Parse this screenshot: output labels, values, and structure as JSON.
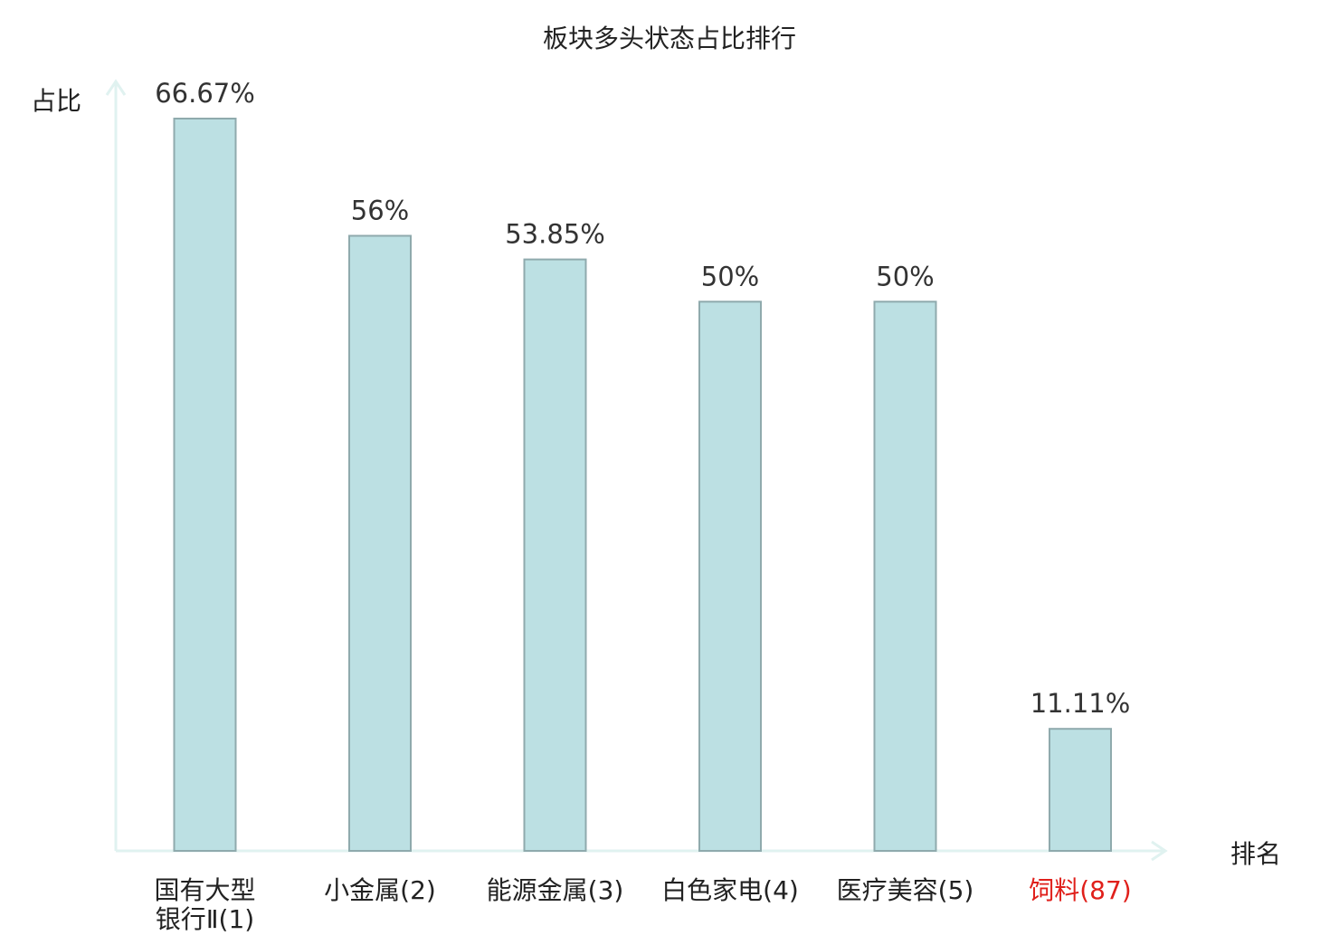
{
  "chart_data": {
    "type": "bar",
    "title": "板块多头状态占比排行",
    "ylabel": "占比",
    "xlabel": "排名",
    "categories": [
      {
        "lines": [
          "国有大型",
          "银行Ⅱ(1)"
        ],
        "highlight": false
      },
      {
        "lines": [
          "小金属(2)"
        ],
        "highlight": false
      },
      {
        "lines": [
          "能源金属(3)"
        ],
        "highlight": false
      },
      {
        "lines": [
          "白色家电(4)"
        ],
        "highlight": false
      },
      {
        "lines": [
          "医疗美容(5)"
        ],
        "highlight": false
      },
      {
        "lines": [
          "饲料(87)"
        ],
        "highlight": true
      }
    ],
    "values": [
      66.67,
      56,
      53.85,
      50,
      50,
      11.11
    ],
    "value_labels": [
      "66.67%",
      "56%",
      "53.85%",
      "50%",
      "50%",
      "11.11%"
    ],
    "ylim": [
      0,
      66.67
    ],
    "grid": false,
    "legend": "none",
    "colors": {
      "bar_fill": "#bce0e3",
      "bar_stroke": "#8faaad",
      "axis": "#e0f2f0",
      "text": "#222222",
      "value_text": "#333333",
      "highlight_text": "#e0201b"
    }
  }
}
